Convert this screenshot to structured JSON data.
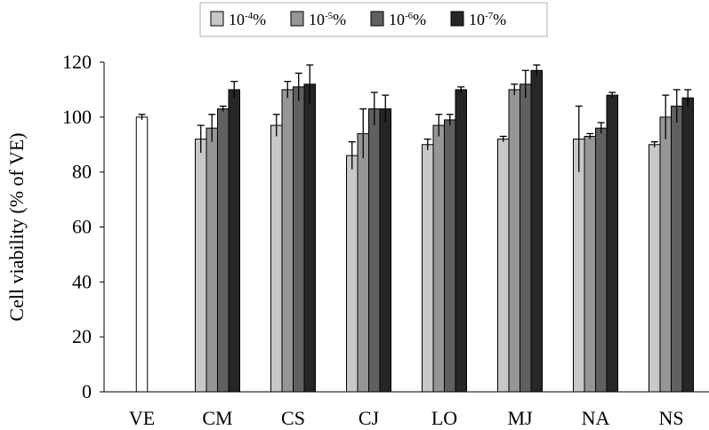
{
  "chart_data": {
    "type": "bar",
    "title": "",
    "ylabel": "Cell viability (% of VE)",
    "xlabel": "",
    "ylim": [
      0,
      120
    ],
    "yticks": [
      0,
      20,
      40,
      60,
      80,
      100,
      120
    ],
    "grid": false,
    "legend_position": "top",
    "reference": {
      "category": "VE",
      "value": 100,
      "error": 1,
      "color": "#ffffff"
    },
    "categories": [
      "CM",
      "CS",
      "CJ",
      "LO",
      "MJ",
      "NA",
      "NS"
    ],
    "all_categories": [
      "VE",
      "CM",
      "CS",
      "CJ",
      "LO",
      "MJ",
      "NA",
      "NS"
    ],
    "series": [
      {
        "name_base": "10",
        "name_exp": "-4",
        "name_suffix": "%",
        "color": "#c8c8c8",
        "values": [
          92,
          97,
          86,
          90,
          92,
          92,
          90
        ],
        "errors": [
          5,
          4,
          5,
          2,
          1,
          12,
          1
        ]
      },
      {
        "name_base": "10",
        "name_exp": "-5",
        "name_suffix": "%",
        "color": "#969696",
        "values": [
          96,
          110,
          94,
          97,
          110,
          93,
          100
        ],
        "errors": [
          5,
          3,
          9,
          4,
          2,
          1,
          8
        ]
      },
      {
        "name_base": "10",
        "name_exp": "-6",
        "name_suffix": "%",
        "color": "#606060",
        "values": [
          103,
          111,
          103,
          99,
          112,
          96,
          104
        ],
        "errors": [
          1,
          5,
          6,
          2,
          5,
          2,
          6
        ]
      },
      {
        "name_base": "10",
        "name_exp": "-7",
        "name_suffix": "%",
        "color": "#262626",
        "values": [
          110,
          112,
          103,
          110,
          117,
          108,
          107
        ],
        "errors": [
          3,
          7,
          5,
          1,
          2,
          1,
          3
        ]
      }
    ]
  }
}
